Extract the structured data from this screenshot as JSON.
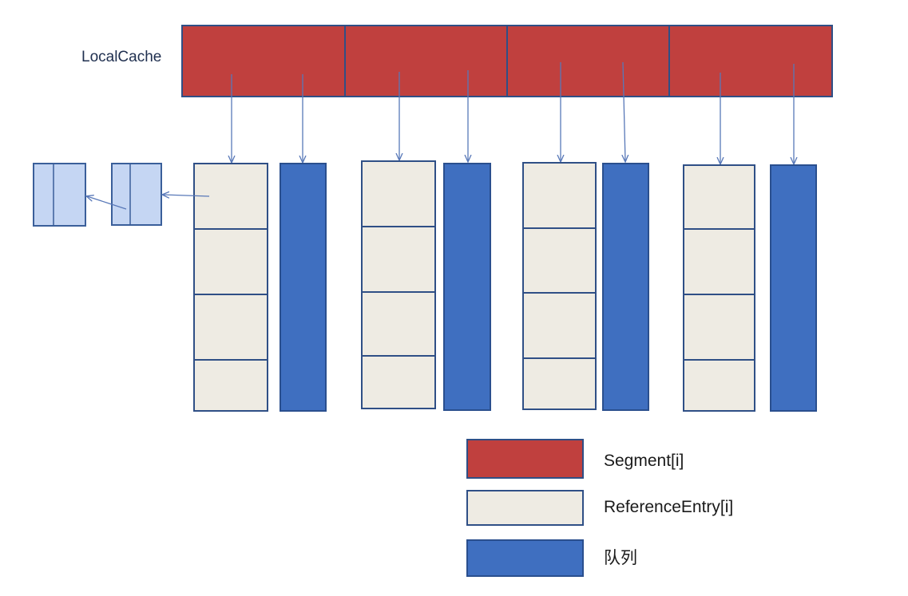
{
  "diagram": {
    "root_label": "LocalCache",
    "segment_count": 4,
    "entry_slots_per_segment": 4,
    "node_cells": 2
  },
  "legend": [
    {
      "key": "segment",
      "label": "Segment[i]"
    },
    {
      "key": "entry",
      "label": "ReferenceEntry[i]"
    },
    {
      "key": "queue",
      "label": "队列"
    }
  ],
  "colors": {
    "segment_fill": "#c0403e",
    "segment_stroke": "#2f4f86",
    "entry_fill": "#eeebe3",
    "entry_stroke": "#2f4f86",
    "queue_fill": "#3f6fc0",
    "queue_stroke": "#2a4f8e",
    "node_fill": "#c5d6f3",
    "node_stroke": "#3a5f9a",
    "arrow": "#5878b8"
  }
}
